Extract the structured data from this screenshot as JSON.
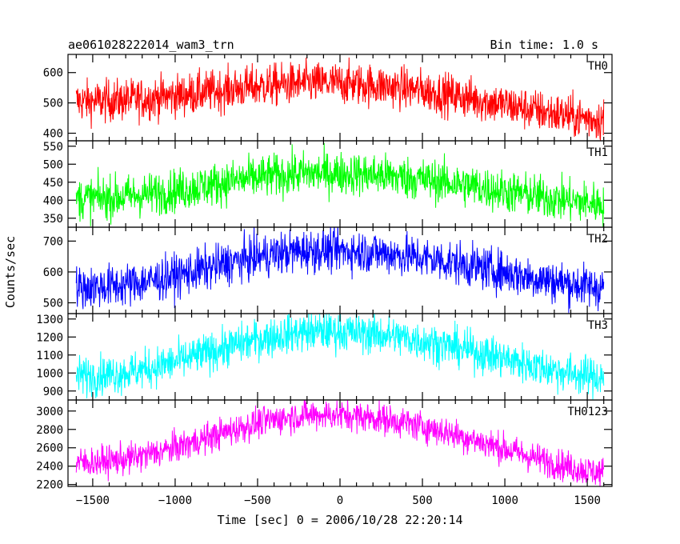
{
  "header": {
    "title": "ae061028222014_wam3_trn",
    "bin_time": "Bin time: 1.0 s"
  },
  "chart_data": {
    "type": "line",
    "xlabel": "Time [sec] 0 = 2006/10/28 22:20:14",
    "ylabel": "Counts/sec",
    "xlim": [
      -1650,
      1650
    ],
    "xticks": [
      -1500,
      -1000,
      -500,
      0,
      500,
      1000,
      1500
    ],
    "x_range": [
      -1600,
      1600
    ],
    "bin_time_s": 1.0,
    "grid": false,
    "panels": [
      {
        "name": "TH0",
        "color": "#ff0000",
        "ylim": [
          375,
          660
        ],
        "yticks": [
          400,
          500,
          600
        ],
        "profile": {
          "start": 505,
          "peak": 565,
          "peak_x": -100,
          "end": 445,
          "noise": 35
        }
      },
      {
        "name": "TH1",
        "color": "#00ff00",
        "ylim": [
          325,
          565
        ],
        "yticks": [
          350,
          400,
          450,
          500,
          550
        ],
        "profile": {
          "start": 405,
          "peak": 475,
          "peak_x": -100,
          "end": 390,
          "noise": 30
        }
      },
      {
        "name": "TH2",
        "color": "#0000ff",
        "ylim": [
          465,
          745
        ],
        "yticks": [
          500,
          600,
          700
        ],
        "profile": {
          "start": 550,
          "peak": 670,
          "peak_x": -100,
          "end": 550,
          "noise": 35
        }
      },
      {
        "name": "TH3",
        "color": "#00ffff",
        "ylim": [
          850,
          1330
        ],
        "yticks": [
          900,
          1000,
          1100,
          1200,
          1300
        ],
        "profile": {
          "start": 985,
          "peak": 1230,
          "peak_x": -100,
          "end": 975,
          "noise": 55
        }
      },
      {
        "name": "TH0123",
        "color": "#ff00ff",
        "ylim": [
          2180,
          3120
        ],
        "yticks": [
          2200,
          2400,
          2600,
          2800,
          3000
        ],
        "profile": {
          "start": 2440,
          "peak": 2960,
          "peak_x": -100,
          "end": 2330,
          "noise": 85
        }
      }
    ]
  }
}
